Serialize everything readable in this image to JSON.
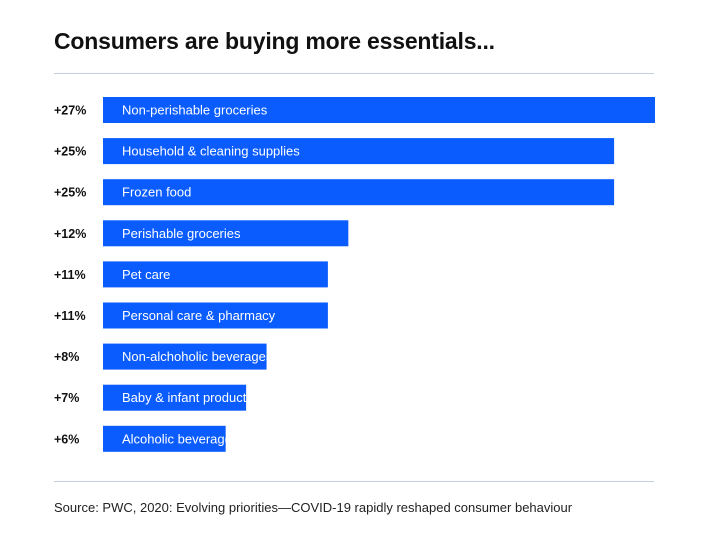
{
  "chart_data": {
    "type": "bar",
    "orientation": "horizontal",
    "title": "Consumers are buying more essentials...",
    "categories": [
      "Non-perishable groceries",
      "Household & cleaning supplies",
      "Frozen food",
      "Perishable groceries",
      "Pet care",
      "Personal care & pharmacy",
      "Non-alchoholic beverages",
      "Baby & infant products",
      "Alcoholic beverages & tobacco"
    ],
    "values": [
      27,
      25,
      25,
      12,
      11,
      11,
      8,
      7,
      6
    ],
    "value_labels": [
      "+27%",
      "+25%",
      "+25%",
      "+12%",
      "+11%",
      "+11%",
      "+8%",
      "+7%",
      "+6%"
    ],
    "unit": "%",
    "bar_color": "#0a5cff",
    "grid": false
  },
  "source": "Source: PWC, 2020: Evolving priorities—COVID-19 rapidly reshaped consumer behaviour"
}
